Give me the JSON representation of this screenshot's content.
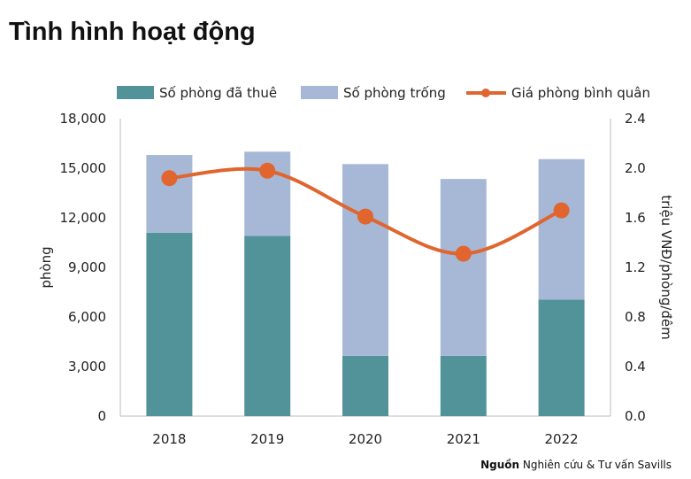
{
  "title": "Tình hình hoạt động",
  "source": {
    "label": "Nguồn",
    "text": "Nghiên cứu & Tư vấn Savills"
  },
  "chart_data": {
    "type": "bar",
    "stacked": true,
    "categories": [
      "2018",
      "2019",
      "2020",
      "2021",
      "2022"
    ],
    "series": [
      {
        "name": "Số phòng đã thuê",
        "type": "bar",
        "axis": "left",
        "color": "#52939a",
        "values": [
          11100,
          10900,
          3650,
          3650,
          7050
        ]
      },
      {
        "name": "Số phòng trống",
        "type": "bar",
        "axis": "left",
        "color": "#a6b8d6",
        "values": [
          4700,
          5100,
          11600,
          10700,
          8500
        ]
      },
      {
        "name": "Giá phòng bình quân",
        "type": "line",
        "axis": "right",
        "color": "#e0652f",
        "values": [
          1.92,
          1.98,
          1.61,
          1.31,
          1.66
        ]
      }
    ],
    "ylabel": "phòng",
    "ylabel_right": "triệu VNĐ/phòng/đêm",
    "ylim": [
      0,
      18000
    ],
    "ylim_right": [
      0,
      2.4
    ],
    "yticks": [
      "0",
      "3,000",
      "6,000",
      "9,000",
      "12,000",
      "15,000",
      "18,000"
    ],
    "yticks_right": [
      "0.0",
      "0.4",
      "0.8",
      "1.2",
      "1.6",
      "2.0",
      "2.4"
    ],
    "grid": false,
    "legend": "top"
  }
}
